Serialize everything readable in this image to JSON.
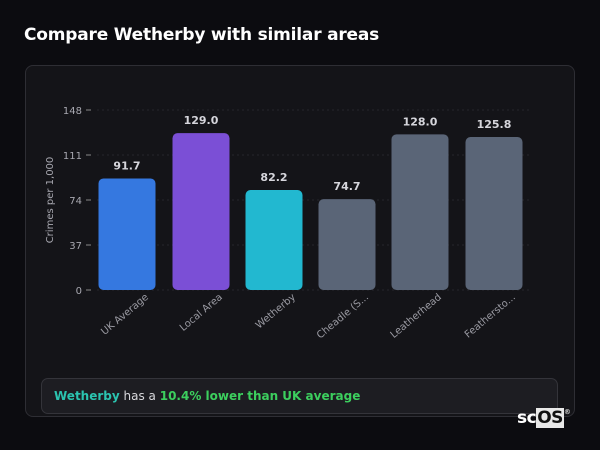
{
  "title": "Compare Wetherby with similar areas",
  "chart_data": {
    "type": "bar",
    "categories": [
      "UK Average",
      "Local Area",
      "Wetherby",
      "Cheadle (S...",
      "Leatherhead",
      "Feathersto..."
    ],
    "values": [
      91.7,
      129.0,
      82.2,
      74.7,
      128.0,
      125.8
    ],
    "data_labels": [
      "91.7",
      "129.0",
      "82.2",
      "74.7",
      "128.0",
      "125.8"
    ],
    "colors": [
      "#3578e0",
      "#7b4fd6",
      "#22b8d0",
      "#5a6577",
      "#5a6577",
      "#5a6577"
    ],
    "ylabel": "Crimes per 1,000",
    "xlabel": "",
    "ylim": [
      0,
      148
    ],
    "yticks": [
      0,
      37,
      74,
      111,
      148
    ],
    "grid": true,
    "legend": "none"
  },
  "insight": {
    "area": "Wetherby",
    "middle": " has a ",
    "comparison": "10.4% lower than UK average"
  },
  "logo": {
    "text_a": "sc",
    "text_b": "OS",
    "mark": "®"
  }
}
